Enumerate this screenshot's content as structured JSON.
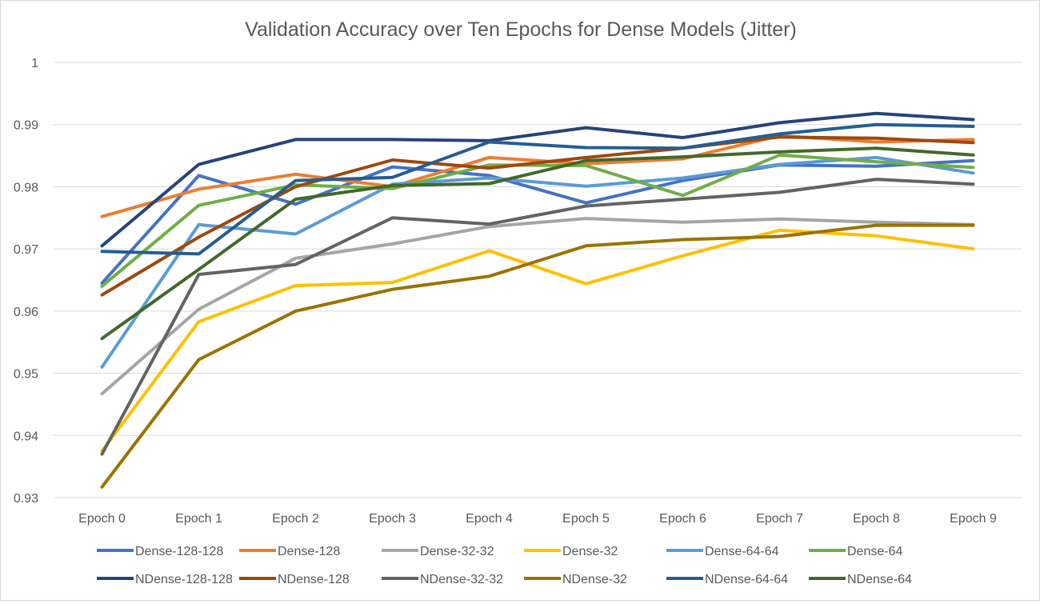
{
  "chart_data": {
    "type": "line",
    "title": "Validation Accuracy over Ten Epochs for Dense Models (Jitter)",
    "xlabel": "",
    "ylabel": "",
    "categories": [
      "Epoch 0",
      "Epoch 1",
      "Epoch 2",
      "Epoch 3",
      "Epoch 4",
      "Epoch 5",
      "Epoch 6",
      "Epoch 7",
      "Epoch 8",
      "Epoch 9"
    ],
    "ylim": [
      0.93,
      1.0
    ],
    "yticks": [
      "0.93",
      "0.94",
      "0.95",
      "0.96",
      "0.97",
      "0.98",
      "0.99",
      "1"
    ],
    "grid": true,
    "legend_position": "bottom",
    "series": [
      {
        "name": "Dense-128-128",
        "color": "#4472C4",
        "values": [
          0.9645,
          0.9818,
          0.9772,
          0.9832,
          0.9818,
          0.9774,
          0.981,
          0.9835,
          0.9833,
          0.9842
        ]
      },
      {
        "name": "Dense-128",
        "color": "#ED7D31",
        "values": [
          0.9752,
          0.9796,
          0.982,
          0.98,
          0.9847,
          0.9837,
          0.9845,
          0.9882,
          0.9872,
          0.9876
        ]
      },
      {
        "name": "Dense-32-32",
        "color": "#A5A5A5",
        "values": [
          0.9467,
          0.9603,
          0.9685,
          0.9708,
          0.9736,
          0.9749,
          0.9743,
          0.9748,
          0.9743,
          0.9739
        ]
      },
      {
        "name": "Dense-32",
        "color": "#FFC000",
        "values": [
          0.9375,
          0.9583,
          0.9641,
          0.9646,
          0.9697,
          0.9644,
          0.9689,
          0.973,
          0.9721,
          0.97
        ]
      },
      {
        "name": "Dense-64-64",
        "color": "#5B9BD5",
        "values": [
          0.951,
          0.9739,
          0.9724,
          0.9804,
          0.9814,
          0.9801,
          0.9814,
          0.9836,
          0.9847,
          0.9822
        ]
      },
      {
        "name": "Dense-64",
        "color": "#70AD47",
        "values": [
          0.964,
          0.977,
          0.9803,
          0.9797,
          0.9835,
          0.9834,
          0.9786,
          0.9851,
          0.984,
          0.9831
        ]
      },
      {
        "name": "NDense-128-128",
        "color": "#264478",
        "values": [
          0.9705,
          0.9836,
          0.9876,
          0.9876,
          0.9874,
          0.9895,
          0.9879,
          0.9903,
          0.9918,
          0.9908
        ]
      },
      {
        "name": "NDense-128",
        "color": "#9E480E",
        "values": [
          0.9626,
          0.9719,
          0.98,
          0.9843,
          0.983,
          0.9847,
          0.9862,
          0.988,
          0.9878,
          0.9871
        ]
      },
      {
        "name": "NDense-32-32",
        "color": "#636363",
        "values": [
          0.937,
          0.9659,
          0.9675,
          0.975,
          0.974,
          0.9769,
          0.978,
          0.9791,
          0.9812,
          0.9804
        ]
      },
      {
        "name": "NDense-32",
        "color": "#997300",
        "values": [
          0.9317,
          0.9522,
          0.96,
          0.9635,
          0.9656,
          0.9705,
          0.9715,
          0.972,
          0.9738,
          0.9738
        ]
      },
      {
        "name": "NDense-64-64",
        "color": "#255E91",
        "values": [
          0.9696,
          0.9692,
          0.981,
          0.9815,
          0.9872,
          0.9863,
          0.9862,
          0.9885,
          0.99,
          0.9897
        ]
      },
      {
        "name": "NDense-64",
        "color": "#43682B",
        "values": [
          0.9556,
          0.9667,
          0.978,
          0.9802,
          0.9805,
          0.9842,
          0.9848,
          0.9856,
          0.9862,
          0.9851
        ]
      }
    ]
  }
}
